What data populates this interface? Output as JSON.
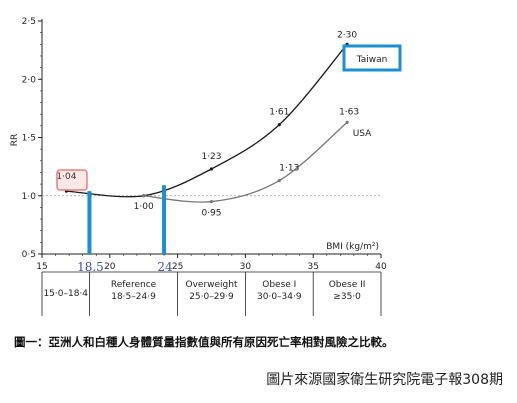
{
  "chart_data": {
    "type": "line",
    "xlabel": "BMI (kg/m²)",
    "ylabel": "RR",
    "xlim": [
      15,
      40
    ],
    "ylim": [
      0.5,
      2.5
    ],
    "x_ticks": [
      "15",
      "20",
      "25",
      "30",
      "35",
      "40"
    ],
    "y_ticks": [
      "0·5",
      "1·0",
      "1·5",
      "2·0",
      "2·5"
    ],
    "reference_line": 1.0,
    "series": [
      {
        "name": "Taiwan",
        "color": "#1a1a1a",
        "points": [
          {
            "x": 16.8,
            "y": 1.04,
            "label": "1·04"
          },
          {
            "x": 22.5,
            "y": 1.0,
            "label": "1·00"
          },
          {
            "x": 27.5,
            "y": 1.23,
            "label": "1·23"
          },
          {
            "x": 32.5,
            "y": 1.61,
            "label": "1·61"
          },
          {
            "x": 37.5,
            "y": 2.3,
            "label": "2·30"
          }
        ]
      },
      {
        "name": "USA",
        "color": "#777777",
        "points": [
          {
            "x": 22.5,
            "y": 1.0,
            "label": ""
          },
          {
            "x": 27.5,
            "y": 0.95,
            "label": "0·95"
          },
          {
            "x": 32.5,
            "y": 1.13,
            "label": "1·13"
          },
          {
            "x": 37.5,
            "y": 1.63,
            "label": "1·63"
          }
        ]
      }
    ],
    "highlights": [
      {
        "x": 18.5,
        "label": "18.5",
        "color": "#1a8fd1"
      },
      {
        "x": 24,
        "label": "24",
        "color": "#1a8fd1"
      }
    ],
    "categories": [
      {
        "name": "",
        "range": "15·0–18·4",
        "x_from": 15,
        "x_to": 18.5
      },
      {
        "name": "Reference",
        "range": "18·5–24·9",
        "x_from": 18.5,
        "x_to": 25
      },
      {
        "name": "Overweight",
        "range": "25·0–29·9",
        "x_from": 25,
        "x_to": 30
      },
      {
        "name": "Obese I",
        "range": "30·0–34·9",
        "x_from": 30,
        "x_to": 35
      },
      {
        "name": "Obese II",
        "range": "≥35·0",
        "x_from": 35,
        "x_to": 40
      }
    ]
  },
  "caption": "圖一：亞洲人和白種人身體質量指數值與所有原因死亡率相對風險之比較。",
  "source": "圖片來源國家衛生研究院電子報308期"
}
